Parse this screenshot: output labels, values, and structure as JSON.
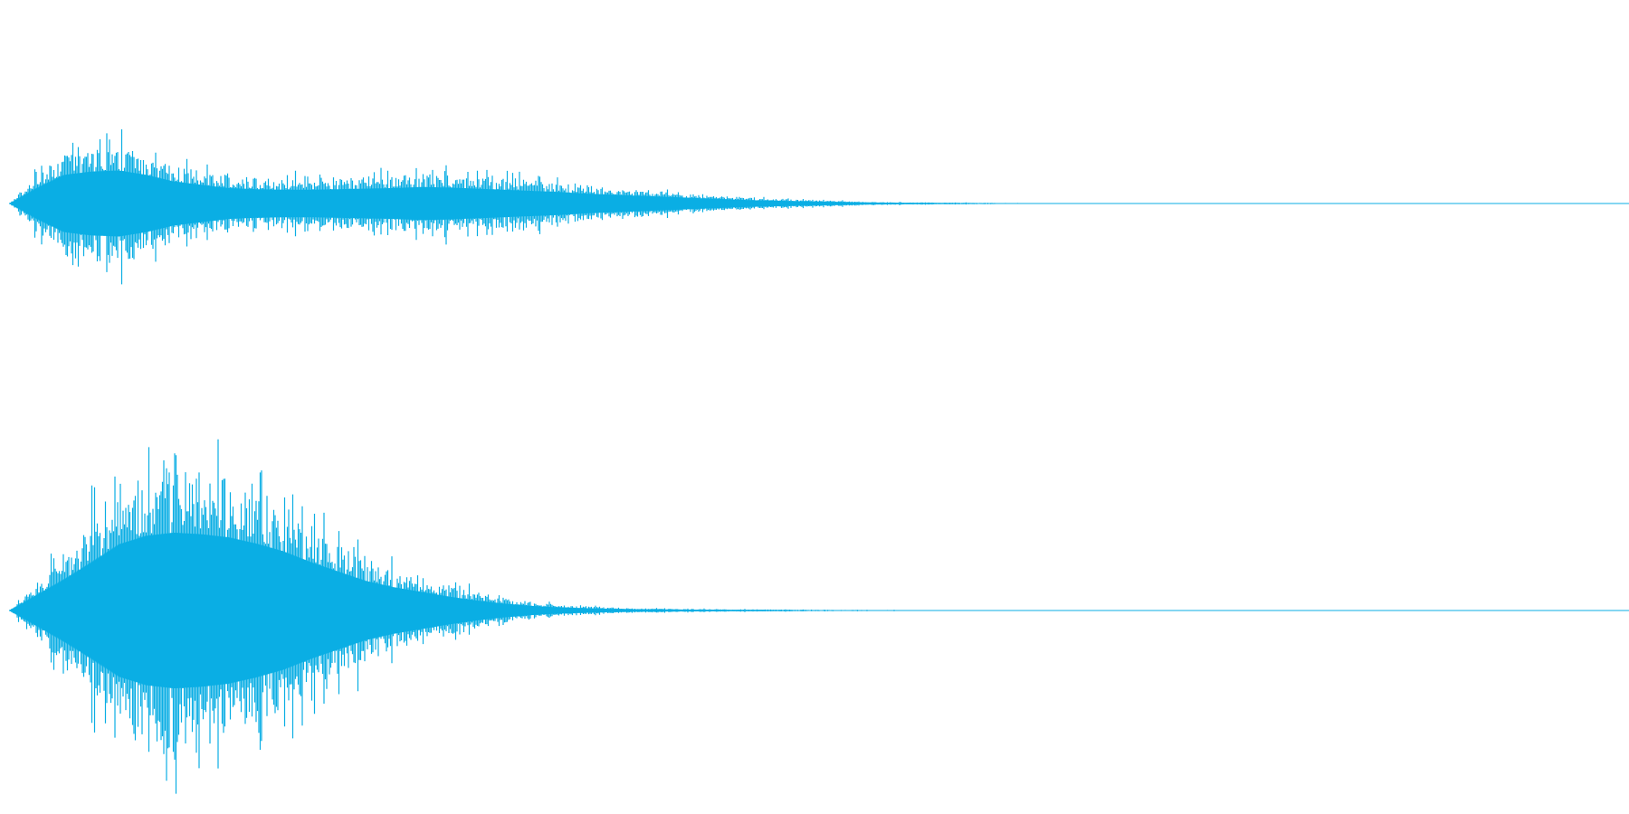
{
  "waveform": {
    "color": "#0aaee4",
    "background": "#ffffff",
    "channel_count": 2,
    "channels": [
      {
        "name": "",
        "envelope_peaks": [
          0.0,
          0.28,
          0.52,
          0.58,
          0.6,
          0.52,
          0.4,
          0.34,
          0.28,
          0.26,
          0.25,
          0.25,
          0.26,
          0.27,
          0.28,
          0.3,
          0.29,
          0.27,
          0.25,
          0.23,
          0.21,
          0.18,
          0.16,
          0.14,
          0.12,
          0.1,
          0.08,
          0.06,
          0.05,
          0.04,
          0.03,
          0.02,
          0.015,
          0.012,
          0.01,
          0.008,
          0.006,
          0.004,
          0.003,
          0.002,
          0.001,
          0.0,
          0.0,
          0.0,
          0.0,
          0.0,
          0.0,
          0.0,
          0.0,
          0.0,
          0.0,
          0.0,
          0.0,
          0.0,
          0.0,
          0.0,
          0.0,
          0.0,
          0.0,
          0.0
        ]
      },
      {
        "name": "",
        "envelope_peaks": [
          0.0,
          0.2,
          0.4,
          0.62,
          0.85,
          0.96,
          1.0,
          0.98,
          0.94,
          0.86,
          0.76,
          0.62,
          0.5,
          0.38,
          0.3,
          0.24,
          0.18,
          0.13,
          0.09,
          0.06,
          0.04,
          0.03,
          0.02,
          0.016,
          0.013,
          0.011,
          0.01,
          0.008,
          0.007,
          0.006,
          0.005,
          0.004,
          0.004,
          0.003,
          0.003,
          0.002,
          0.002,
          0.001,
          0.001,
          0.001,
          0.0,
          0.0,
          0.0,
          0.0,
          0.0,
          0.0,
          0.0,
          0.0,
          0.0,
          0.0,
          0.0,
          0.0,
          0.0,
          0.0,
          0.0,
          0.0,
          0.0,
          0.0,
          0.0,
          0.0
        ]
      }
    ]
  }
}
